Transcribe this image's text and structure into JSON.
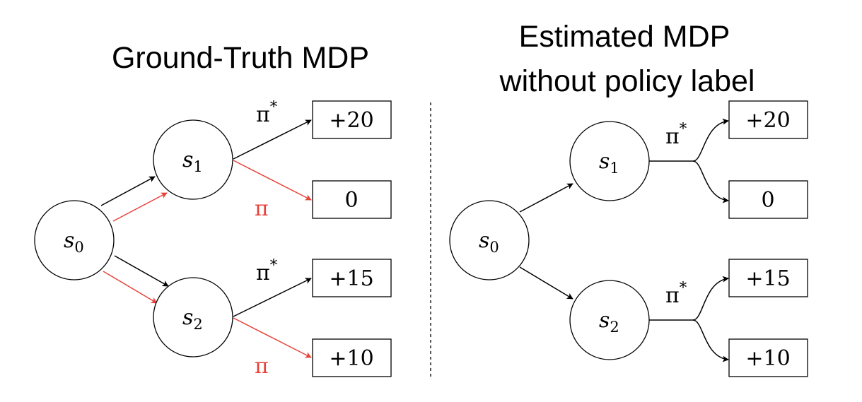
{
  "colors": {
    "optimal_policy": "#000000",
    "behavior_policy": "#e8413a",
    "divider": "#000000"
  },
  "left": {
    "title": "Ground-Truth MDP",
    "states": {
      "s0": {
        "base": "s",
        "sub": "0"
      },
      "s1": {
        "base": "s",
        "sub": "1"
      },
      "s2": {
        "base": "s",
        "sub": "2"
      }
    },
    "policy_labels": {
      "optimal": {
        "base": "π",
        "sup": "*"
      },
      "behavior": {
        "base": "π"
      }
    },
    "rewards": [
      "+20",
      "0",
      "+15",
      "+10"
    ]
  },
  "right": {
    "title_line1": "Estimated MDP",
    "title_line2": "without policy label",
    "states": {
      "s0": {
        "base": "s",
        "sub": "0"
      },
      "s1": {
        "base": "s",
        "sub": "1"
      },
      "s2": {
        "base": "s",
        "sub": "2"
      }
    },
    "policy_labels": {
      "optimal": {
        "base": "π",
        "sup": "*"
      }
    },
    "rewards": [
      "+20",
      "0",
      "+15",
      "+10"
    ]
  }
}
